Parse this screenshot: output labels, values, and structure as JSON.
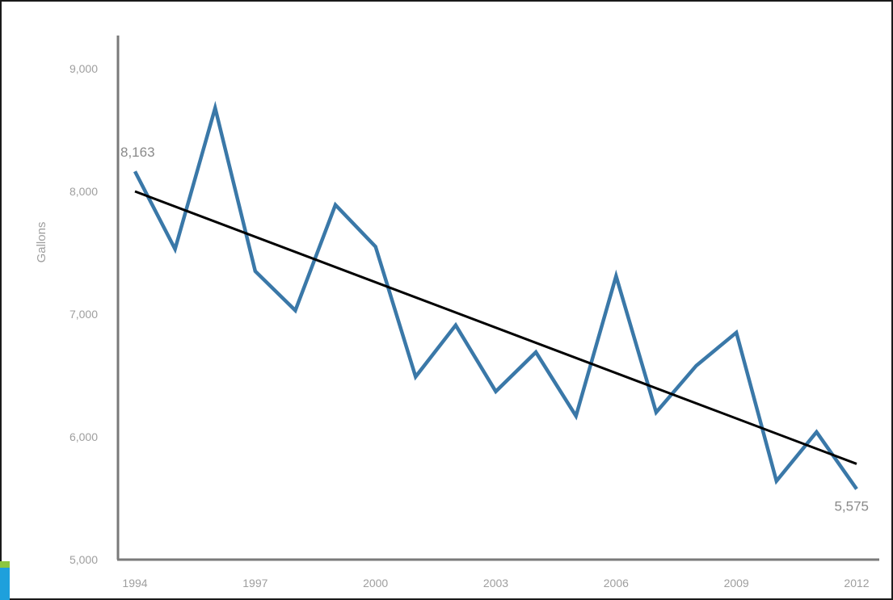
{
  "chart_data": {
    "type": "line",
    "title": "",
    "xlabel": "",
    "ylabel": "Gallons",
    "ylim": [
      5000,
      9200
    ],
    "x": [
      1994,
      1995,
      1996,
      1997,
      1998,
      1999,
      2000,
      2001,
      2002,
      2003,
      2004,
      2005,
      2006,
      2007,
      2008,
      2009,
      2010,
      2011,
      2012
    ],
    "x_ticks": [
      "1994",
      "1997",
      "2000",
      "2003",
      "2006",
      "2009",
      "2012"
    ],
    "y_ticks": [
      "5,000",
      "6,000",
      "7,000",
      "8,000",
      "9,000"
    ],
    "y_tick_values": [
      5000,
      6000,
      7000,
      8000,
      9000
    ],
    "series": [
      {
        "values": [
          8163,
          7530,
          8680,
          7350,
          7030,
          7890,
          7550,
          6490,
          6910,
          6370,
          6690,
          6170,
          7310,
          6200,
          6580,
          6850,
          5640,
          6040,
          5575
        ],
        "color": "#3a78a8"
      }
    ],
    "trendline": {
      "start": [
        1994,
        8000
      ],
      "end": [
        2012,
        5780
      ],
      "color": "#000000"
    },
    "annotations": [
      {
        "text": "8,163",
        "x": 1994,
        "y": 8163
      },
      {
        "text": "5,575",
        "x": 2012,
        "y": 5575
      }
    ],
    "grid": false,
    "legend": "none"
  },
  "colors": {
    "accent_green": "#8cc63f",
    "accent_blue": "#1ea0dc"
  }
}
